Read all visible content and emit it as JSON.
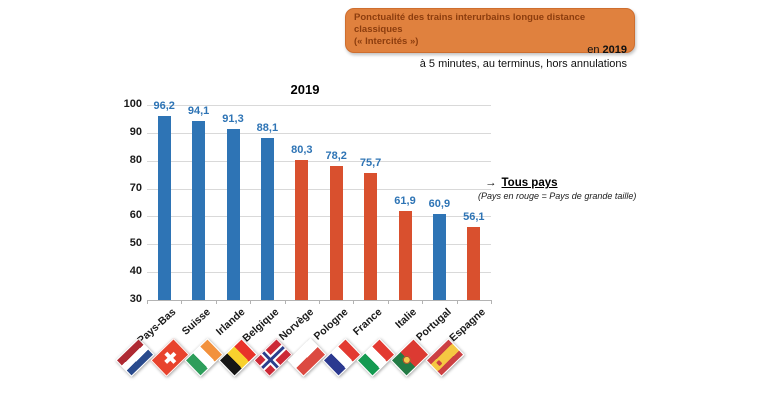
{
  "banner": {
    "line1": "Ponctualité des trains interurbains longue distance classiques",
    "line2": "(« Intercités »)",
    "bg_color": "#E0813E",
    "text_color": "#8C3D0E"
  },
  "subtitle": {
    "year_prefix": "en",
    "year": "2019",
    "note": "à 5 minutes, au terminus, hors annulations"
  },
  "annotation": {
    "arrow": "→",
    "title": "Tous pays",
    "note": "(Pays en rouge = Pays de grande taille)"
  },
  "chart_data": {
    "type": "bar",
    "title": "2019",
    "categories": [
      "Pays-Bas",
      "Suisse",
      "Irlande",
      "Belgique",
      "Norvège",
      "Pologne",
      "France",
      "Italie",
      "Portugal",
      "Espagne"
    ],
    "values": [
      96.2,
      94.1,
      91.3,
      88.1,
      80.3,
      78.2,
      75.7,
      61.9,
      60.9,
      56.1
    ],
    "value_labels": [
      "96,2",
      "94,1",
      "91,3",
      "88,1",
      "80,3",
      "78,2",
      "75,7",
      "61,9",
      "60,9",
      "56,1"
    ],
    "bar_colors": [
      "blue",
      "blue",
      "blue",
      "blue",
      "red",
      "red",
      "red",
      "red",
      "blue",
      "red"
    ],
    "flags": [
      "nl",
      "ch",
      "ie",
      "be",
      "no",
      "pl",
      "fr",
      "it",
      "pt",
      "es"
    ],
    "xlabel": "",
    "ylabel": "",
    "ylim": [
      30,
      100
    ],
    "yticks": [
      100,
      90,
      80,
      70,
      60,
      50,
      40,
      30
    ],
    "grid": true,
    "legend_position": "right",
    "colors": {
      "blue": "#2E74B5",
      "red": "#D9502E",
      "value_label": "#2E74B5"
    }
  }
}
